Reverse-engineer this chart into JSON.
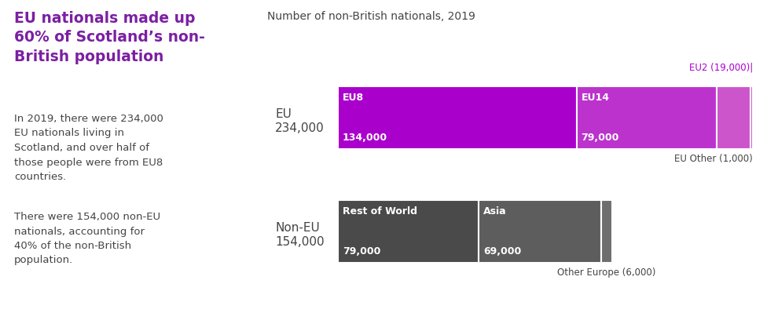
{
  "title_left": "EU nationals made up\n60% of Scotland’s non-\nBritish population",
  "title_left_color": "#7b1fa2",
  "chart_title": "Number of non-British nationals, 2019",
  "chart_title_color": "#444444",
  "body_text1": "In 2019, there were 234,000\nEU nationals living in\nScotland, and over half of\nthose people were from EU8\ncountries.",
  "body_text2": "There were 154,000 non-EU\nnationals, accounting for\n40% of the non-British\npopulation.",
  "body_text_color": "#444444",
  "eu_label_line1": "EU",
  "eu_label_line2": "234,000",
  "noneu_label_line1": "Non-EU",
  "noneu_label_line2": "154,000",
  "label_color": "#444444",
  "eu_bar_segments": [
    {
      "label": "EU8",
      "sublabel": "134,000",
      "value": 134000,
      "color": "#aa00cc"
    },
    {
      "label": "EU14",
      "sublabel": "79,000",
      "value": 79000,
      "color": "#bb33cc"
    },
    {
      "label": "EU2",
      "sublabel": "",
      "value": 19000,
      "color": "#cc55cc"
    },
    {
      "label": "EU Other",
      "sublabel": "",
      "value": 1000,
      "color": "#cc55cc"
    }
  ],
  "eu_total": 234000,
  "eu2_annotation": "EU2 (19,000)|",
  "eu2_annotation_color": "#aa00cc",
  "eu_other_annotation": "EU Other (1,000)",
  "eu_other_annotation_color": "#444444",
  "noneu_bar_segments": [
    {
      "label": "Rest of World",
      "sublabel": "79,000",
      "value": 79000,
      "color": "#4a4a4a"
    },
    {
      "label": "Asia",
      "sublabel": "69,000",
      "value": 69000,
      "color": "#5d5d5d"
    },
    {
      "label": "Other Europe",
      "sublabel": "",
      "value": 6000,
      "color": "#6e6e6e"
    }
  ],
  "noneu_total": 154000,
  "other_europe_annotation": "Other Europe (6,000)",
  "other_europe_annotation_color": "#444444",
  "background_color": "#ffffff"
}
